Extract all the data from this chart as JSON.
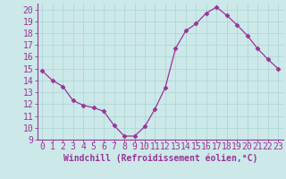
{
  "x": [
    0,
    1,
    2,
    3,
    4,
    5,
    6,
    7,
    8,
    9,
    10,
    11,
    12,
    13,
    14,
    15,
    16,
    17,
    18,
    19,
    20,
    21,
    22,
    23
  ],
  "y": [
    14.8,
    14.0,
    13.5,
    12.3,
    11.9,
    11.7,
    11.4,
    10.2,
    9.3,
    9.3,
    10.1,
    11.6,
    13.4,
    16.7,
    18.2,
    18.8,
    19.7,
    20.2,
    19.5,
    18.7,
    17.8,
    16.7,
    15.8,
    15.0
  ],
  "line_color": "#993399",
  "marker": "D",
  "marker_size": 2.5,
  "bg_color": "#cce8e8",
  "grid_color": "#aad4d4",
  "xlabel": "Windchill (Refroidissement éolien,°C)",
  "ylabel_ticks": [
    9,
    10,
    11,
    12,
    13,
    14,
    15,
    16,
    17,
    18,
    19,
    20
  ],
  "ylim": [
    9,
    20.5
  ],
  "xlim": [
    -0.5,
    23.5
  ],
  "label_color": "#993399",
  "tick_color": "#993399",
  "xlabel_fontsize": 7,
  "tick_fontsize": 7
}
